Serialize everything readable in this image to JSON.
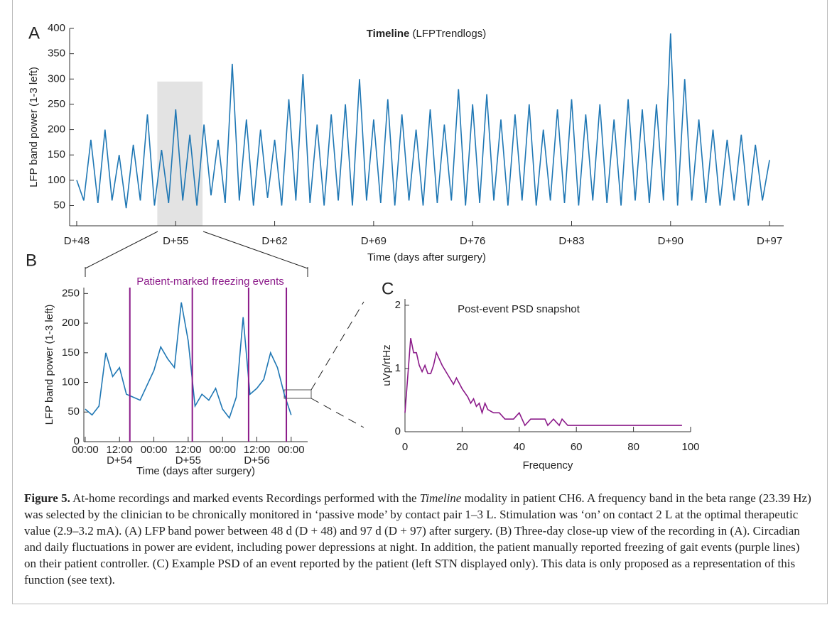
{
  "chart_data": [
    {
      "type": "line",
      "panel_label": "A",
      "title": "Timeline",
      "subtitle": "(LFPTrendlogs)",
      "xlabel": "Time (days after surgery)",
      "ylabel": "LFP band power (1-3 left)",
      "color": "#1f77b4",
      "xlim": [
        47.5,
        98
      ],
      "ylim": [
        10,
        400
      ],
      "xticks": [
        {
          "value": 48,
          "label": "D+48"
        },
        {
          "value": 55,
          "label": "D+55"
        },
        {
          "value": 62,
          "label": "D+62"
        },
        {
          "value": 69,
          "label": "D+69"
        },
        {
          "value": 76,
          "label": "D+76"
        },
        {
          "value": 83,
          "label": "D+83"
        },
        {
          "value": 90,
          "label": "D+90"
        },
        {
          "value": 97,
          "label": "D+97"
        }
      ],
      "yticks": [
        50,
        100,
        150,
        200,
        250,
        300,
        350,
        400
      ],
      "highlight_range": [
        53.7,
        56.9
      ],
      "highlight_top": 295,
      "x": [
        48,
        48.5,
        49,
        49.5,
        50,
        50.5,
        51,
        51.5,
        52,
        52.5,
        53,
        53.5,
        54,
        54.5,
        55,
        55.5,
        56,
        56.5,
        57,
        57.5,
        58,
        58.5,
        59,
        59.5,
        60,
        60.5,
        61,
        61.5,
        62,
        62.5,
        63,
        63.5,
        64,
        64.5,
        65,
        65.5,
        66,
        66.5,
        67,
        67.5,
        68,
        68.5,
        69,
        69.5,
        70,
        70.5,
        71,
        71.5,
        72,
        72.5,
        73,
        73.5,
        74,
        74.5,
        75,
        75.5,
        76,
        76.5,
        77,
        77.5,
        78,
        78.5,
        79,
        79.5,
        80,
        80.5,
        81,
        81.5,
        82,
        82.5,
        83,
        83.5,
        84,
        84.5,
        85,
        85.5,
        86,
        86.5,
        87,
        87.5,
        88,
        88.5,
        89,
        89.5,
        90,
        90.5,
        91,
        91.5,
        92,
        92.5,
        93,
        93.5,
        94,
        94.5,
        95,
        95.5,
        96,
        96.5,
        97
      ],
      "values": [
        100,
        60,
        180,
        55,
        200,
        60,
        150,
        45,
        170,
        60,
        230,
        50,
        160,
        55,
        240,
        60,
        190,
        50,
        210,
        70,
        180,
        55,
        330,
        60,
        220,
        50,
        200,
        65,
        180,
        50,
        260,
        60,
        310,
        55,
        210,
        50,
        230,
        60,
        250,
        50,
        300,
        60,
        220,
        55,
        260,
        50,
        230,
        60,
        200,
        50,
        240,
        55,
        210,
        60,
        280,
        50,
        250,
        55,
        270,
        60,
        220,
        50,
        230,
        60,
        250,
        50,
        200,
        60,
        240,
        55,
        260,
        50,
        230,
        60,
        250,
        55,
        220,
        50,
        260,
        60,
        240,
        55,
        250,
        60,
        390,
        50,
        300,
        60,
        220,
        55,
        200,
        50,
        180,
        60,
        190,
        50,
        170,
        60,
        140
      ]
    },
    {
      "type": "line",
      "panel_label": "B",
      "title": "Patient-marked freezing events",
      "title_color": "#8b1a89",
      "xlabel": "Time (days after surgery)",
      "ylabel": "LFP band power (1-3 left)",
      "color": "#1f77b4",
      "xlim": [
        53.98,
        57.24
      ],
      "ylim": [
        0,
        260
      ],
      "xticks": [
        {
          "value": 54,
          "label": "00:00"
        },
        {
          "value": 54.5,
          "label": "12:00"
        },
        {
          "value": 55,
          "label": "00:00"
        },
        {
          "value": 55.5,
          "label": "12:00"
        },
        {
          "value": 56,
          "label": "00:00"
        },
        {
          "value": 56.5,
          "label": "12:00"
        },
        {
          "value": 57,
          "label": "00:00"
        }
      ],
      "x_day_ticks": [
        {
          "value": 54.5,
          "label": "D+54"
        },
        {
          "value": 55.5,
          "label": "D+55"
        },
        {
          "value": 56.5,
          "label": "D+56"
        }
      ],
      "yticks": [
        0,
        50,
        100,
        150,
        200,
        250
      ],
      "events": [
        54.65,
        55.56,
        56.38,
        56.93
      ],
      "event_color": "#8b1a89",
      "x": [
        54.0,
        54.1,
        54.2,
        54.3,
        54.4,
        54.5,
        54.6,
        54.7,
        54.8,
        54.9,
        55.0,
        55.1,
        55.2,
        55.3,
        55.4,
        55.5,
        55.6,
        55.7,
        55.8,
        55.9,
        56.0,
        56.1,
        56.2,
        56.3,
        56.4,
        56.5,
        56.6,
        56.7,
        56.8,
        56.9,
        57.0
      ],
      "values": [
        55,
        45,
        60,
        150,
        110,
        125,
        80,
        75,
        70,
        95,
        120,
        160,
        140,
        125,
        235,
        170,
        60,
        80,
        70,
        90,
        55,
        40,
        75,
        210,
        80,
        90,
        105,
        150,
        125,
        80,
        45
      ]
    },
    {
      "type": "line",
      "panel_label": "C",
      "title": "Post-event PSD snapshot",
      "xlabel": "Frequency",
      "ylabel": "uVp/rtHz",
      "color": "#8b1a89",
      "xlim": [
        0,
        100
      ],
      "ylim": [
        0,
        2.1
      ],
      "xticks": [
        0,
        20,
        40,
        60,
        80,
        100
      ],
      "yticks": [
        0,
        1,
        2
      ],
      "x": [
        0,
        2,
        3,
        4,
        5,
        6,
        7,
        8,
        9,
        10,
        11,
        13,
        15,
        17,
        18,
        20,
        22,
        23,
        24,
        25,
        26,
        27,
        28,
        29,
        31,
        33,
        35,
        38,
        40,
        42,
        44,
        46,
        49,
        50,
        52,
        54,
        55,
        57,
        60,
        97
      ],
      "values": [
        0.3,
        1.48,
        1.25,
        1.25,
        1.05,
        0.95,
        1.05,
        0.92,
        0.92,
        1.05,
        1.25,
        1.05,
        0.9,
        0.75,
        0.85,
        0.68,
        0.55,
        0.45,
        0.52,
        0.4,
        0.45,
        0.3,
        0.45,
        0.35,
        0.3,
        0.3,
        0.2,
        0.2,
        0.3,
        0.1,
        0.2,
        0.2,
        0.2,
        0.1,
        0.2,
        0.1,
        0.2,
        0.1,
        0.1,
        0.1
      ]
    }
  ],
  "caption": {
    "label": "Figure 5.",
    "text_parts": [
      "At-home recordings and marked events Recordings performed with the",
      "Timeline",
      "modality in patient CH6. A frequency band in the beta range (23.39 Hz) was selected by the clinician to be chronically monitored in ‘passive mode’ by contact pair 1–3 L. Stimulation was ‘on’ on contact 2 L at the optimal therapeutic value (2.9–3.2 mA). (A) LFP band power between 48 d (D + 48) and 97 d (D + 97) after surgery. (B) Three-day close-up view of the recording in (A). Circadian and daily fluctuations in power are evident, including power depressions at night. In addition, the patient manually reported freezing of gait events (purple lines) on their patient controller. (C) Example PSD of an event reported by the patient (left STN displayed only). This data is only proposed as a representation of this function (see text)."
    ]
  }
}
